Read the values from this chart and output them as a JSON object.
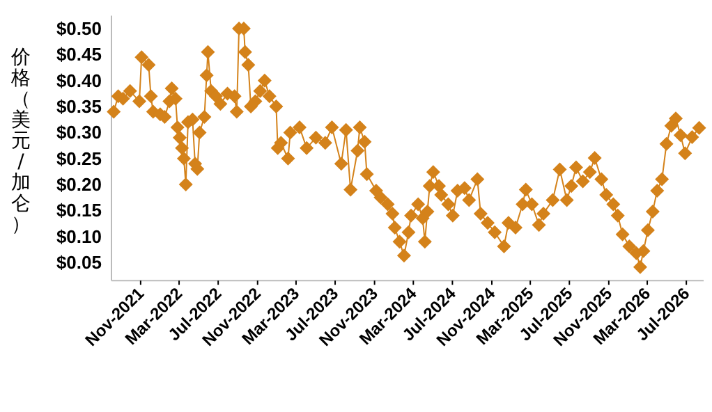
{
  "chart_data": {
    "type": "line",
    "ylabel": "价格（美元/加仑）",
    "color": "#d4821a",
    "marker": "diamond",
    "line_style": "solid",
    "xlim": [
      "2021-08-02",
      "2026-08-24"
    ],
    "ylim": [
      0.015,
      0.525
    ],
    "xticks": [
      {
        "value": "2021-11-01",
        "label": "Nov-2021"
      },
      {
        "value": "2022-03-01",
        "label": "Mar-2022"
      },
      {
        "value": "2022-07-01",
        "label": "Jul-2022"
      },
      {
        "value": "2022-11-01",
        "label": "Nov-2022"
      },
      {
        "value": "2023-03-01",
        "label": "Mar-2023"
      },
      {
        "value": "2023-07-01",
        "label": "Jul-2023"
      },
      {
        "value": "2023-11-01",
        "label": "Nov-2023"
      },
      {
        "value": "2024-03-01",
        "label": "Mar-2024"
      },
      {
        "value": "2024-07-01",
        "label": "Jul-2024"
      },
      {
        "value": "2024-11-01",
        "label": "Nov-2024"
      },
      {
        "value": "2025-03-01",
        "label": "Mar-2025"
      },
      {
        "value": "2025-07-01",
        "label": "Jul-2025"
      },
      {
        "value": "2025-11-01",
        "label": "Nov-2025"
      },
      {
        "value": "2026-03-01",
        "label": "Mar-2026"
      },
      {
        "value": "2026-07-01",
        "label": "Jul-2026"
      }
    ],
    "yticks": [
      {
        "value": 0.05,
        "label": "$0.05"
      },
      {
        "value": 0.1,
        "label": "$0.10"
      },
      {
        "value": 0.15,
        "label": "$0.15"
      },
      {
        "value": 0.2,
        "label": "$0.20"
      },
      {
        "value": 0.25,
        "label": "$0.25"
      },
      {
        "value": 0.3,
        "label": "$0.30"
      },
      {
        "value": 0.35,
        "label": "$0.35"
      },
      {
        "value": 0.4,
        "label": "$0.40"
      },
      {
        "value": 0.45,
        "label": "$0.45"
      },
      {
        "value": 0.5,
        "label": "$0.50"
      }
    ],
    "x": [
      "2021-08-09",
      "2021-08-23",
      "2021-09-07",
      "2021-09-29",
      "2021-10-28",
      "2021-11-04",
      "2021-11-26",
      "2021-12-03",
      "2021-12-10",
      "2022-01-01",
      "2022-01-15",
      "2022-01-30",
      "2022-02-06",
      "2022-02-18",
      "2022-02-24",
      "2022-03-03",
      "2022-03-10",
      "2022-03-16",
      "2022-03-22",
      "2022-03-29",
      "2022-04-12",
      "2022-04-20",
      "2022-04-27",
      "2022-05-04",
      "2022-05-19",
      "2022-05-26",
      "2022-05-30",
      "2022-06-09",
      "2022-06-24",
      "2022-07-08",
      "2022-07-30",
      "2022-08-21",
      "2022-08-28",
      "2022-09-04",
      "2022-09-19",
      "2022-09-23",
      "2022-10-03",
      "2022-10-11",
      "2022-10-25",
      "2022-11-09",
      "2022-11-23",
      "2022-12-08",
      "2022-12-29",
      "2023-01-03",
      "2023-01-13",
      "2023-02-04",
      "2023-02-11",
      "2023-03-12",
      "2023-04-03",
      "2023-05-02",
      "2023-05-31",
      "2023-06-21",
      "2023-07-20",
      "2023-08-04",
      "2023-08-18",
      "2023-09-09",
      "2023-09-16",
      "2023-10-01",
      "2023-10-08",
      "2023-11-06",
      "2023-11-20",
      "2023-12-12",
      "2023-12-27",
      "2024-01-03",
      "2024-01-18",
      "2024-02-01",
      "2024-02-15",
      "2024-02-23",
      "2024-03-16",
      "2024-03-30",
      "2024-04-06",
      "2024-04-14",
      "2024-04-21",
      "2024-05-02",
      "2024-05-20",
      "2024-05-27",
      "2024-06-18",
      "2024-07-02",
      "2024-07-17",
      "2024-08-08",
      "2024-08-22",
      "2024-09-17",
      "2024-09-27",
      "2024-10-19",
      "2024-11-10",
      "2024-12-09",
      "2024-12-23",
      "2025-01-14",
      "2025-02-05",
      "2025-02-15",
      "2025-03-06",
      "2025-03-28",
      "2025-04-11",
      "2025-05-10",
      "2025-06-01",
      "2025-06-23",
      "2025-07-07",
      "2025-07-22",
      "2025-08-12",
      "2025-09-03",
      "2025-09-18",
      "2025-10-09",
      "2025-10-24",
      "2025-11-15",
      "2025-11-29",
      "2025-12-14",
      "2026-01-04",
      "2026-01-26",
      "2026-02-07",
      "2026-02-17",
      "2026-03-03",
      "2026-03-18",
      "2026-04-01",
      "2026-04-16",
      "2026-04-30",
      "2026-05-15",
      "2026-05-29",
      "2026-06-13",
      "2026-06-27",
      "2026-07-19",
      "2026-08-10"
    ],
    "values": [
      0.34,
      0.37,
      0.365,
      0.38,
      0.36,
      0.445,
      0.43,
      0.37,
      0.34,
      0.335,
      0.33,
      0.36,
      0.385,
      0.365,
      0.31,
      0.29,
      0.27,
      0.25,
      0.2,
      0.32,
      0.325,
      0.24,
      0.23,
      0.3,
      0.33,
      0.41,
      0.455,
      0.38,
      0.37,
      0.355,
      0.375,
      0.37,
      0.34,
      0.5,
      0.5,
      0.455,
      0.43,
      0.35,
      0.36,
      0.38,
      0.4,
      0.37,
      0.35,
      0.27,
      0.28,
      0.25,
      0.3,
      0.31,
      0.27,
      0.29,
      0.28,
      0.31,
      0.24,
      0.305,
      0.19,
      0.265,
      0.31,
      0.282,
      0.22,
      0.188,
      0.175,
      0.162,
      0.144,
      0.117,
      0.09,
      0.063,
      0.108,
      0.14,
      0.162,
      0.135,
      0.09,
      0.148,
      0.197,
      0.224,
      0.197,
      0.18,
      0.162,
      0.14,
      0.188,
      0.193,
      0.17,
      0.21,
      0.144,
      0.126,
      0.108,
      0.081,
      0.126,
      0.117,
      0.162,
      0.19,
      0.162,
      0.122,
      0.144,
      0.17,
      0.229,
      0.17,
      0.197,
      0.233,
      0.206,
      0.224,
      0.251,
      0.21,
      0.18,
      0.162,
      0.14,
      0.104,
      0.081,
      0.068,
      0.041,
      0.072,
      0.112,
      0.148,
      0.188,
      0.21,
      0.278,
      0.313,
      0.327,
      0.295,
      0.26,
      0.291,
      0.309
    ]
  }
}
